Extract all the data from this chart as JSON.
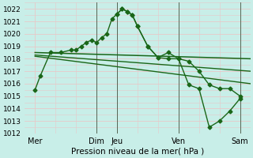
{
  "background_color": "#c8eee8",
  "grid_color": "#e8c8c8",
  "line_color": "#1a6618",
  "xlabel": "Pression niveau de la mer( hPa )",
  "ylim": [
    1012,
    1022.5
  ],
  "yticks": [
    1012,
    1013,
    1014,
    1015,
    1016,
    1017,
    1018,
    1019,
    1020,
    1021,
    1022
  ],
  "xlim": [
    0,
    22
  ],
  "xtick_positions": [
    1,
    7,
    9,
    15,
    21
  ],
  "xtick_labels": [
    "Mer",
    "Dim",
    "Jeu",
    "Ven",
    "Sam"
  ],
  "vline_positions": [
    7,
    9,
    15,
    21
  ],
  "vline_color": "#556655",
  "vline_lw": 0.7,
  "series": [
    {
      "x": [
        1,
        1.5,
        2.5,
        3.5,
        4.5,
        5,
        5.5,
        6,
        6.5,
        7,
        7.5,
        8,
        8.5,
        9,
        9.5,
        10,
        10.5,
        11,
        12,
        13,
        14,
        15,
        16,
        17,
        18,
        19,
        20,
        21
      ],
      "y": [
        1015.5,
        1016.6,
        1018.5,
        1018.5,
        1018.7,
        1018.7,
        1019.0,
        1019.3,
        1019.5,
        1019.3,
        1019.7,
        1020.0,
        1021.2,
        1021.6,
        1022.0,
        1021.8,
        1021.5,
        1020.6,
        1019.0,
        1018.1,
        1018.0,
        1018.0,
        1017.8,
        1017.0,
        1015.9,
        1015.6,
        1015.6,
        1015.0
      ],
      "marker": "D",
      "markersize": 2.5,
      "linewidth": 1.0
    },
    {
      "x": [
        9,
        9.5,
        10,
        10.5,
        11,
        12,
        13,
        14,
        15,
        16,
        17,
        18,
        19,
        20,
        21
      ],
      "y": [
        1021.6,
        1022.0,
        1021.8,
        1021.5,
        1020.6,
        1019.0,
        1018.1,
        1018.5,
        1018.0,
        1015.9,
        1015.6,
        1012.5,
        1013.0,
        1013.8,
        1014.8
      ],
      "marker": "D",
      "markersize": 2.5,
      "linewidth": 1.0
    },
    {
      "x": [
        1,
        22
      ],
      "y": [
        1018.5,
        1018.0
      ],
      "marker": null,
      "linewidth": 1.1
    },
    {
      "x": [
        1,
        22
      ],
      "y": [
        1018.3,
        1017.0
      ],
      "marker": null,
      "linewidth": 1.0
    },
    {
      "x": [
        1,
        22
      ],
      "y": [
        1018.2,
        1016.0
      ],
      "marker": null,
      "linewidth": 1.0
    }
  ]
}
